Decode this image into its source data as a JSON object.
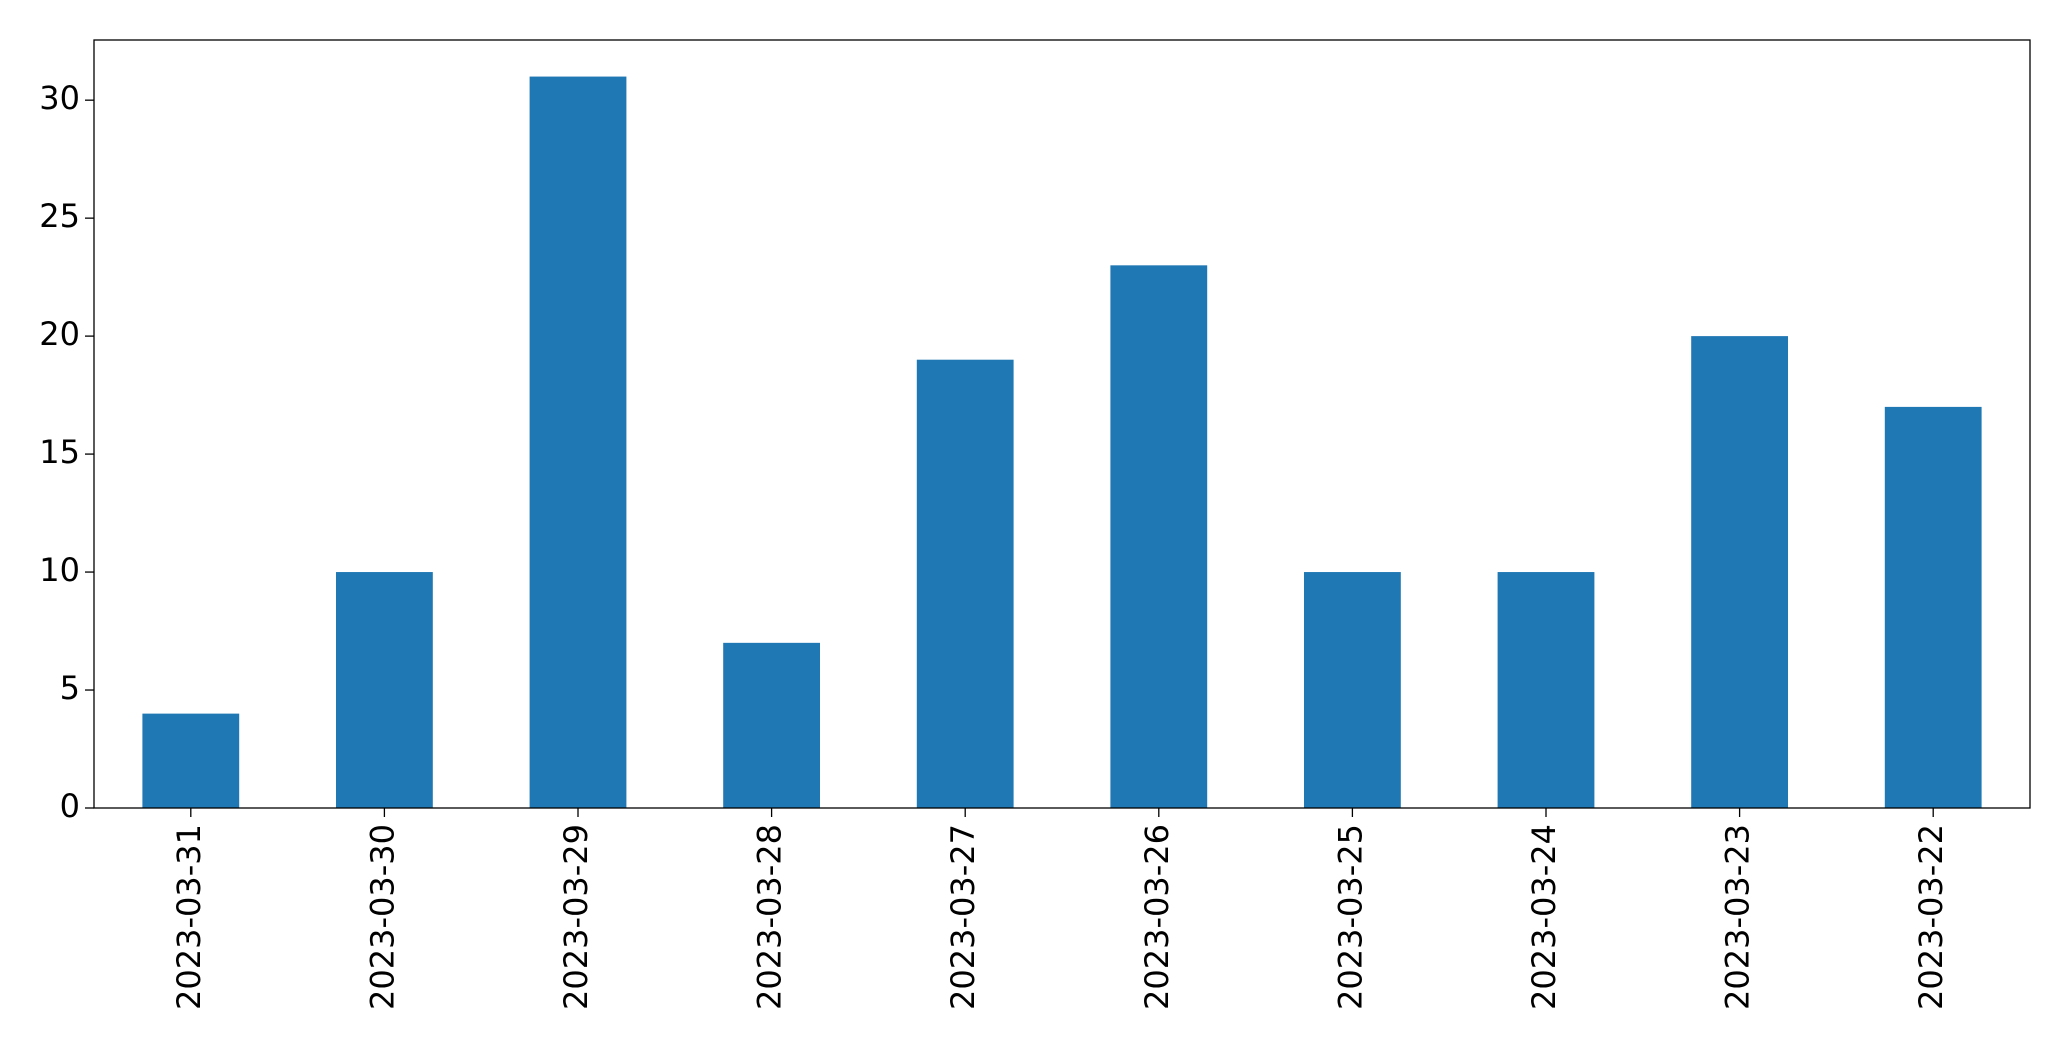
{
  "chart_data": {
    "type": "bar",
    "categories": [
      "2023-03-31",
      "2023-03-30",
      "2023-03-29",
      "2023-03-28",
      "2023-03-27",
      "2023-03-26",
      "2023-03-25",
      "2023-03-24",
      "2023-03-23",
      "2023-03-22"
    ],
    "values": [
      4,
      10,
      31,
      7,
      19,
      23,
      10,
      10,
      20,
      17
    ],
    "color": "#1f77b4",
    "ylim": [
      0,
      32.55
    ],
    "yticks": [
      0,
      5,
      10,
      15,
      20,
      25,
      30
    ],
    "grid": false
  }
}
